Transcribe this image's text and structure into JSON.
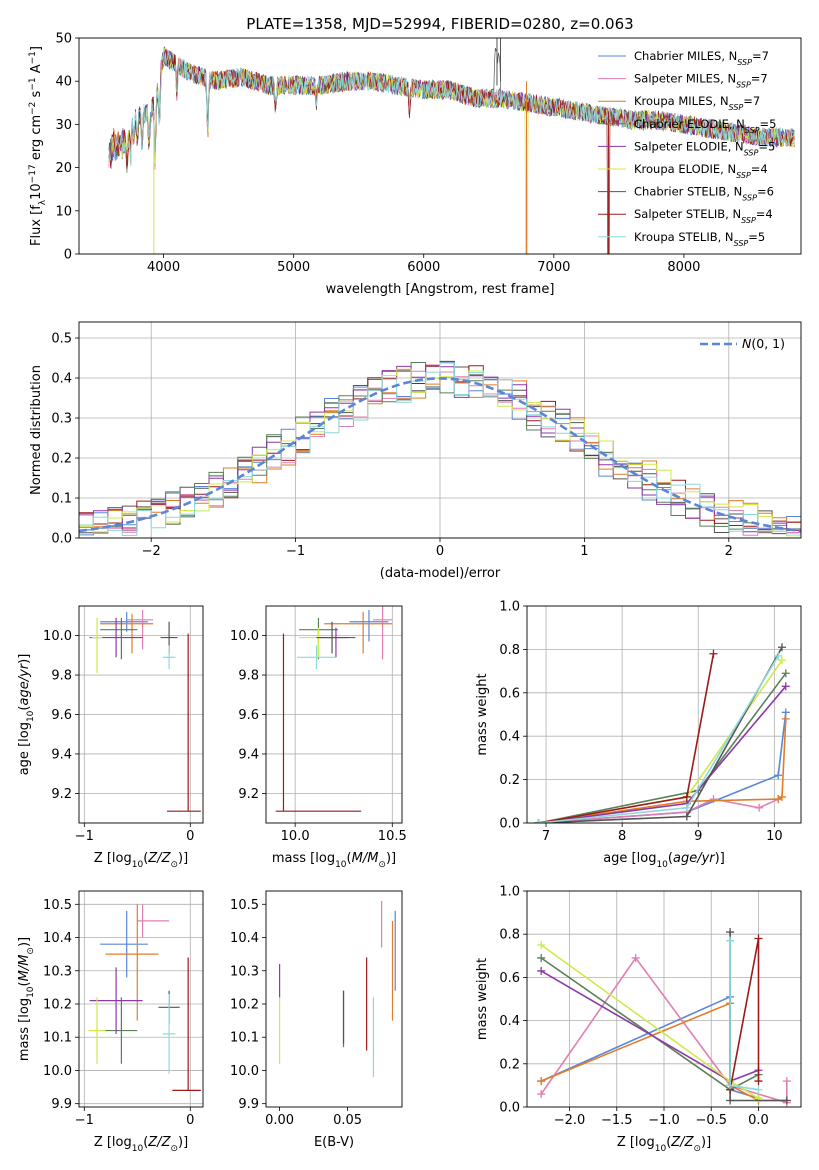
{
  "figure_title": "PLATE=1358, MJD=52994, FIBERID=0280, z=0.063",
  "colors": {
    "Chabrier MILES": "#5b86d8",
    "Salpeter MILES": "#e07fb3",
    "Kroupa MILES": "#e07d2a",
    "Chabrier ELODIE": "#5a7f5a",
    "Salpeter ELODIE": "#8e37a8",
    "Kroupa ELODIE": "#cfe84a",
    "Chabrier STELIB": "#555555",
    "Salpeter STELIB": "#9c1a1a",
    "Kroupa STELIB": "#8cd8dc"
  },
  "chart_data": [
    {
      "id": "spectrum",
      "type": "line",
      "title": "PLATE=1358, MJD=52994, FIBERID=0280, z=0.063",
      "xlabel": "wavelength [Angstrom, rest frame]",
      "ylabel": "Flux [f_λ 10^-17 erg cm^-2 s^-1 A^-1]",
      "xlim": [
        3350,
        8900
      ],
      "ylim": [
        0,
        50
      ],
      "xticks": [
        4000,
        5000,
        6000,
        7000,
        8000
      ],
      "yticks": [
        0,
        10,
        20,
        30,
        40,
        50
      ],
      "grid": false,
      "legend_position": "top-right",
      "x": [
        3600,
        3700,
        3800,
        3900,
        3950,
        4000,
        4100,
        4200,
        4300,
        4400,
        4600,
        4800,
        5000,
        5200,
        5400,
        5600,
        5800,
        6000,
        6200,
        6400,
        6600,
        6800,
        7000,
        7200,
        7400,
        7600,
        7800,
        8000,
        8200,
        8400,
        8600,
        8850
      ],
      "y": [
        29,
        30,
        32,
        33,
        37,
        46,
        44,
        42,
        41,
        40,
        41,
        39,
        39,
        39,
        40,
        40,
        39,
        38,
        38,
        36,
        36,
        35,
        34,
        33,
        32,
        31,
        31,
        30,
        29,
        28,
        27,
        27
      ],
      "series": [
        {
          "name": "Chabrier MILES, N_SSP=7"
        },
        {
          "name": "Salpeter MILES, N_SSP=7"
        },
        {
          "name": "Kroupa MILES, N_SSP=7"
        },
        {
          "name": "Chabrier ELODIE, N_SSP=5"
        },
        {
          "name": "Salpeter ELODIE, N_SSP=5"
        },
        {
          "name": "Kroupa ELODIE, N_SSP=4"
        },
        {
          "name": "Chabrier STELIB, N_SSP=6"
        },
        {
          "name": "Salpeter STELIB, N_SSP=4"
        },
        {
          "name": "Kroupa STELIB, N_SSP=5"
        }
      ],
      "legend": [
        {
          "label": "Chabrier MILES, N",
          "sub": "SSP",
          "tail": "=7"
        },
        {
          "label": "Salpeter MILES, N",
          "sub": "SSP",
          "tail": "=7"
        },
        {
          "label": "Kroupa MILES, N",
          "sub": "SSP",
          "tail": "=7"
        },
        {
          "label": "Chabrier ELODIE, N",
          "sub": "SSP",
          "tail": "=5"
        },
        {
          "label": "Salpeter ELODIE, N",
          "sub": "SSP",
          "tail": "=5"
        },
        {
          "label": "Kroupa ELODIE, N",
          "sub": "SSP",
          "tail": "=4"
        },
        {
          "label": "Chabrier STELIB, N",
          "sub": "SSP",
          "tail": "=6"
        },
        {
          "label": "Salpeter STELIB, N",
          "sub": "SSP",
          "tail": "=4"
        },
        {
          "label": "Kroupa STELIB, N",
          "sub": "SSP",
          "tail": "=5"
        }
      ]
    },
    {
      "id": "residuals",
      "type": "line",
      "xlabel": "(data-model)/error",
      "ylabel": "Normed distribution",
      "xlim": [
        -2.5,
        2.5
      ],
      "ylim": [
        0,
        0.54
      ],
      "xticks": [
        -2,
        -1,
        0,
        1,
        2
      ],
      "yticks": [
        0.0,
        0.1,
        0.2,
        0.3,
        0.4,
        0.5
      ],
      "grid": true,
      "legend_position": "top-right",
      "legend_label": "N(0, 1)",
      "bin_width": 0.1,
      "bin_start": -2.5,
      "reference_curve": "normal(0,1)"
    },
    {
      "id": "age_vs_Z",
      "type": "scatter",
      "xlabel": "Z [log10(Z/Z_sun)]",
      "ylabel": "age [log10(age/yr)]",
      "xlim": [
        -1.05,
        0.12
      ],
      "ylim": [
        9.05,
        10.15
      ],
      "xticks": [
        -1,
        0
      ],
      "yticks": [
        9.2,
        9.4,
        9.6,
        9.8,
        10.0
      ],
      "grid": true,
      "points": [
        {
          "series": "Chabrier MILES",
          "x": -0.6,
          "y": 10.07,
          "xerr": [
            0.25,
            0.2
          ],
          "yerr": [
            0.05,
            0.05
          ]
        },
        {
          "series": "Salpeter MILES",
          "x": -0.45,
          "y": 10.08,
          "xerr": [
            0.15,
            0.1
          ],
          "yerr": [
            0.15,
            0.05
          ]
        },
        {
          "series": "Kroupa MILES",
          "x": -0.55,
          "y": 10.06,
          "xerr": [
            0.3,
            0.2
          ],
          "yerr": [
            0.15,
            0.05
          ]
        },
        {
          "series": "Chabrier ELODIE",
          "x": -0.65,
          "y": 10.03,
          "xerr": [
            0.2,
            0.15
          ],
          "yerr": [
            0.15,
            0.06
          ]
        },
        {
          "series": "Salpeter ELODIE",
          "x": -0.7,
          "y": 9.99,
          "xerr": [
            0.25,
            0.25
          ],
          "yerr": [
            0.1,
            0.1
          ]
        },
        {
          "series": "Kroupa ELODIE",
          "x": -0.88,
          "y": 9.99,
          "xerr": [
            0.05,
            0.05
          ],
          "yerr": [
            0.18,
            0.1
          ]
        },
        {
          "series": "Chabrier STELIB",
          "x": -0.2,
          "y": 9.99,
          "xerr": [
            0.08,
            0.08
          ],
          "yerr": [
            0.08,
            0.08
          ]
        },
        {
          "series": "Salpeter STELIB",
          "x": -0.02,
          "y": 9.11,
          "xerr": [
            0.2,
            0.12
          ],
          "yerr": [
            0.0,
            0.9
          ]
        },
        {
          "series": "Kroupa STELIB",
          "x": -0.2,
          "y": 9.89,
          "xerr": [
            0.06,
            0.06
          ],
          "yerr": [
            0.06,
            0.06
          ]
        }
      ]
    },
    {
      "id": "age_vs_mass",
      "type": "scatter",
      "xlabel": "mass [log10(M/M_sun)]",
      "ylabel": "",
      "xlim": [
        9.85,
        10.55
      ],
      "ylim": [
        9.05,
        10.15
      ],
      "xticks": [
        10.0,
        10.5
      ],
      "yticks": [
        9.2,
        9.4,
        9.6,
        9.8,
        10.0
      ],
      "grid": true,
      "points": [
        {
          "series": "Chabrier MILES",
          "x": 10.38,
          "y": 10.07,
          "xerr": [
            0.1,
            0.1
          ],
          "yerr": [
            0.1,
            0.06
          ]
        },
        {
          "series": "Salpeter MILES",
          "x": 10.45,
          "y": 10.08,
          "xerr": [
            0.05,
            0.05
          ],
          "yerr": [
            0.2,
            0.08
          ]
        },
        {
          "series": "Kroupa MILES",
          "x": 10.35,
          "y": 10.06,
          "xerr": [
            0.2,
            0.15
          ],
          "yerr": [
            0.15,
            0.06
          ]
        },
        {
          "series": "Chabrier ELODIE",
          "x": 10.12,
          "y": 10.03,
          "xerr": [
            0.1,
            0.1
          ],
          "yerr": [
            0.15,
            0.06
          ]
        },
        {
          "series": "Salpeter ELODIE",
          "x": 10.21,
          "y": 9.99,
          "xerr": [
            0.1,
            0.1
          ],
          "yerr": [
            0.1,
            0.05
          ]
        },
        {
          "series": "Kroupa ELODIE",
          "x": 10.12,
          "y": 9.99,
          "xerr": [
            0.1,
            0.1
          ],
          "yerr": [
            0.1,
            0.05
          ]
        },
        {
          "series": "Chabrier STELIB",
          "x": 10.19,
          "y": 9.99,
          "xerr": [
            0.08,
            0.08
          ],
          "yerr": [
            0.08,
            0.08
          ]
        },
        {
          "series": "Salpeter STELIB",
          "x": 9.94,
          "y": 9.11,
          "xerr": [
            0.04,
            0.4
          ],
          "yerr": [
            0.0,
            0.9
          ]
        },
        {
          "series": "Kroupa STELIB",
          "x": 10.11,
          "y": 9.89,
          "xerr": [
            0.1,
            0.1
          ],
          "yerr": [
            0.06,
            0.06
          ]
        }
      ]
    },
    {
      "id": "weight_vs_age",
      "type": "line",
      "xlabel": "age [log10(age/yr)]",
      "ylabel": "mass weight",
      "xlim": [
        6.75,
        10.35
      ],
      "ylim": [
        0,
        1.0
      ],
      "xticks": [
        7,
        8,
        9,
        10
      ],
      "yticks": [
        0.0,
        0.2,
        0.4,
        0.6,
        0.8,
        1.0
      ],
      "grid": true,
      "series": [
        {
          "series": "Chabrier MILES",
          "x": [
            6.9,
            8.85,
            10.05,
            10.15
          ],
          "y": [
            0.0,
            0.05,
            0.22,
            0.51
          ]
        },
        {
          "series": "Salpeter MILES",
          "x": [
            6.9,
            8.85,
            9.2,
            9.8,
            10.05
          ],
          "y": [
            0.0,
            0.05,
            0.11,
            0.07,
            0.11
          ]
        },
        {
          "series": "Kroupa MILES",
          "x": [
            6.9,
            8.85,
            10.05,
            10.1,
            10.15
          ],
          "y": [
            0.0,
            0.1,
            0.11,
            0.12,
            0.48
          ]
        },
        {
          "series": "Chabrier ELODIE",
          "x": [
            6.9,
            9.0,
            10.15
          ],
          "y": [
            0.0,
            0.15,
            0.69
          ]
        },
        {
          "series": "Salpeter ELODIE",
          "x": [
            6.9,
            8.85,
            10.15
          ],
          "y": [
            0.0,
            0.09,
            0.63
          ]
        },
        {
          "series": "Kroupa ELODIE",
          "x": [
            6.9,
            8.85,
            10.1
          ],
          "y": [
            0.0,
            0.12,
            0.75
          ]
        },
        {
          "series": "Chabrier STELIB",
          "x": [
            6.9,
            8.85,
            10.1
          ],
          "y": [
            0.0,
            0.03,
            0.81
          ]
        },
        {
          "series": "Salpeter STELIB",
          "x": [
            6.9,
            8.85,
            9.2
          ],
          "y": [
            0.0,
            0.12,
            0.78
          ]
        },
        {
          "series": "Kroupa STELIB",
          "x": [
            6.9,
            8.85,
            10.05
          ],
          "y": [
            0.0,
            0.07,
            0.77
          ]
        }
      ]
    },
    {
      "id": "mass_vs_Z",
      "type": "scatter",
      "xlabel": "Z [log10(Z/Z_sun)]",
      "ylabel": "mass [log10(M/M_sun)]",
      "xlim": [
        -1.05,
        0.12
      ],
      "ylim": [
        9.89,
        10.54
      ],
      "xticks": [
        -1,
        0
      ],
      "yticks": [
        9.9,
        10.0,
        10.1,
        10.2,
        10.3,
        10.4,
        10.5
      ],
      "grid": true,
      "points": [
        {
          "series": "Chabrier MILES",
          "x": -0.6,
          "y": 10.38,
          "xerr": [
            0.25,
            0.2
          ],
          "yerr": [
            0.1,
            0.1
          ]
        },
        {
          "series": "Salpeter MILES",
          "x": -0.45,
          "y": 10.45,
          "xerr": [
            0.05,
            0.25
          ],
          "yerr": [
            0.05,
            0.05
          ]
        },
        {
          "series": "Kroupa MILES",
          "x": -0.5,
          "y": 10.35,
          "xerr": [
            0.3,
            0.2
          ],
          "yerr": [
            0.2,
            0.15
          ]
        },
        {
          "series": "Chabrier ELODIE",
          "x": -0.65,
          "y": 10.12,
          "xerr": [
            0.15,
            0.15
          ],
          "yerr": [
            0.1,
            0.1
          ]
        },
        {
          "series": "Salpeter ELODIE",
          "x": -0.7,
          "y": 10.21,
          "xerr": [
            0.25,
            0.25
          ],
          "yerr": [
            0.1,
            0.1
          ]
        },
        {
          "series": "Kroupa ELODIE",
          "x": -0.88,
          "y": 10.12,
          "xerr": [
            0.08,
            0.08
          ],
          "yerr": [
            0.1,
            0.1
          ]
        },
        {
          "series": "Chabrier STELIB",
          "x": -0.2,
          "y": 10.19,
          "xerr": [
            0.1,
            0.1
          ],
          "yerr": [
            0.05,
            0.05
          ]
        },
        {
          "series": "Salpeter STELIB",
          "x": -0.02,
          "y": 9.94,
          "xerr": [
            0.15,
            0.12
          ],
          "yerr": [
            0.0,
            0.4
          ]
        },
        {
          "series": "Kroupa STELIB",
          "x": -0.2,
          "y": 10.11,
          "xerr": [
            0.06,
            0.06
          ],
          "yerr": [
            0.12,
            0.12
          ]
        }
      ]
    },
    {
      "id": "mass_vs_ebv",
      "type": "scatter",
      "xlabel": "E(B-V)",
      "ylabel": "",
      "xlim": [
        -0.01,
        0.09
      ],
      "ylim": [
        9.89,
        10.54
      ],
      "xticks": [
        0.0,
        0.05
      ],
      "yticks": [
        9.9,
        10.0,
        10.1,
        10.2,
        10.3,
        10.4,
        10.5
      ],
      "grid": false,
      "points": [
        {
          "series": "Chabrier MILES",
          "x": 0.085,
          "y": 10.36,
          "yerr": [
            0.12,
            0.12
          ]
        },
        {
          "series": "Salpeter MILES",
          "x": 0.075,
          "y": 10.44,
          "yerr": [
            0.07,
            0.07
          ]
        },
        {
          "series": "Kroupa MILES",
          "x": 0.083,
          "y": 10.33,
          "yerr": [
            0.18,
            0.12
          ]
        },
        {
          "series": "Chabrier ELODIE",
          "x": 0.047,
          "y": 10.12,
          "yerr": [
            0.05,
            0.12
          ]
        },
        {
          "series": "Salpeter ELODIE",
          "x": 0.0,
          "y": 10.27,
          "yerr": [
            0.05,
            0.05
          ]
        },
        {
          "series": "Kroupa ELODIE",
          "x": 0.0,
          "y": 10.12,
          "yerr": [
            0.1,
            0.1
          ]
        },
        {
          "series": "Chabrier STELIB",
          "x": 0.047,
          "y": 10.16,
          "yerr": [
            0.08,
            0.08
          ]
        },
        {
          "series": "Salpeter STELIB",
          "x": 0.064,
          "y": 10.2,
          "yerr": [
            0.14,
            0.14
          ]
        },
        {
          "series": "Kroupa STELIB",
          "x": 0.069,
          "y": 10.1,
          "yerr": [
            0.12,
            0.12
          ]
        }
      ]
    },
    {
      "id": "weight_vs_Z",
      "type": "line",
      "xlabel": "Z [log10(Z/Z_sun)]",
      "ylabel": "mass weight",
      "xlim": [
        -2.45,
        0.45
      ],
      "ylim": [
        0,
        1.0
      ],
      "xticks": [
        -2.0,
        -1.5,
        -1.0,
        -0.5,
        0.0
      ],
      "yticks": [
        0.0,
        0.2,
        0.4,
        0.6,
        0.8,
        1.0
      ],
      "grid": true,
      "series": [
        {
          "series": "Chabrier MILES",
          "x": [
            -2.3,
            -0.3,
            -0.3,
            0.0
          ],
          "y": [
            0.12,
            0.51,
            0.08,
            0.04
          ]
        },
        {
          "series": "Salpeter MILES",
          "x": [
            -2.3,
            -1.3,
            -0.3,
            0.3,
            0.3
          ],
          "y": [
            0.06,
            0.69,
            0.1,
            0.02,
            0.12
          ]
        },
        {
          "series": "Kroupa MILES",
          "x": [
            -2.3,
            -0.3,
            -0.3,
            0.0,
            0.3
          ],
          "y": [
            0.12,
            0.48,
            0.1,
            0.03,
            0.03
          ]
        },
        {
          "series": "Chabrier ELODIE",
          "x": [
            -2.3,
            -0.3,
            0.0
          ],
          "y": [
            0.69,
            0.08,
            0.15
          ]
        },
        {
          "series": "Salpeter ELODIE",
          "x": [
            -2.3,
            -0.3,
            0.0
          ],
          "y": [
            0.63,
            0.12,
            0.17
          ]
        },
        {
          "series": "Kroupa ELODIE",
          "x": [
            -2.3,
            -0.3,
            0.0
          ],
          "y": [
            0.75,
            0.12,
            0.04
          ]
        },
        {
          "series": "Chabrier STELIB",
          "x": [
            -0.3,
            -0.3,
            0.3
          ],
          "y": [
            0.81,
            0.03,
            0.03
          ]
        },
        {
          "series": "Salpeter STELIB",
          "x": [
            -0.3,
            0.0,
            0.0
          ],
          "y": [
            0.08,
            0.78,
            0.12
          ]
        },
        {
          "series": "Kroupa STELIB",
          "x": [
            -0.3,
            -0.3,
            0.0
          ],
          "y": [
            0.77,
            0.1,
            0.08
          ]
        }
      ]
    }
  ]
}
